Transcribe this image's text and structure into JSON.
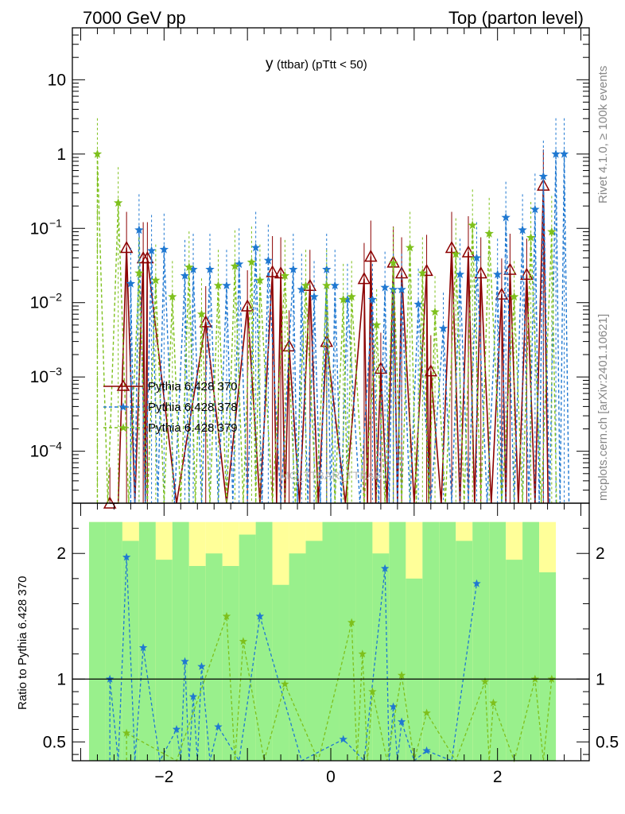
{
  "header": {
    "left": "7000 GeV pp",
    "right": "Top (parton level)"
  },
  "side_labels": {
    "rivet": "Rivet 4.1.0, ≥ 100k events",
    "mcplots": "mcplots.cern.ch [arXiv:2401.10621]"
  },
  "watermark": "MC_TTBAR_TTBAR",
  "chart_data": [
    {
      "type": "line",
      "title": "y (ttbar) (pTtt < 50)",
      "title_main": "y",
      "title_sub": "(ttbar)  (pTtt < 50)",
      "xlabel": "",
      "ylabel": "",
      "xlim": [
        -3.1,
        3.1
      ],
      "ylim": [
        2e-05,
        50
      ],
      "yscale": "log",
      "y_ticks": [
        {
          "value": 10,
          "label": "10",
          "sup": ""
        },
        {
          "value": 1,
          "label": "1",
          "sup": ""
        },
        {
          "value": 0.1,
          "label": "10",
          "sup": "−1"
        },
        {
          "value": 0.01,
          "label": "10",
          "sup": "−2"
        },
        {
          "value": 0.001,
          "label": "10",
          "sup": "−3"
        },
        {
          "value": 0.0001,
          "label": "10",
          "sup": "−4"
        }
      ],
      "legend": [
        "Pythia 6.428 370",
        "Pythia 6.428 378",
        "Pythia 6.428 379"
      ],
      "series": [
        {
          "name": "Pythia 6.428 370",
          "color": "#8b0000",
          "marker": "triangle",
          "line": "solid",
          "x": [
            -2.65,
            -2.45,
            -2.25,
            -2.2,
            -1.5,
            -1.0,
            -0.7,
            -0.6,
            -0.5,
            -0.25,
            -0.05,
            0.4,
            0.48,
            0.6,
            0.75,
            0.85,
            1.15,
            1.2,
            1.45,
            1.65,
            1.8,
            2.05,
            2.15,
            2.35,
            2.55
          ],
          "y": [
            2e-05,
            0.055,
            0.04,
            0.04,
            0.0055,
            0.009,
            0.026,
            0.025,
            0.0026,
            0.017,
            0.003,
            0.021,
            0.042,
            0.0013,
            0.035,
            0.025,
            0.027,
            0.0012,
            0.055,
            0.048,
            0.025,
            0.013,
            0.028,
            0.024,
            0.38
          ]
        },
        {
          "name": "Pythia 6.428 378",
          "color": "#1f78d1",
          "marker": "star",
          "line": "dashed",
          "x": [
            -2.4,
            -2.3,
            -2.15,
            -2.0,
            -1.75,
            -1.65,
            -1.45,
            -1.25,
            -1.1,
            -0.9,
            -0.75,
            -0.45,
            -0.35,
            -0.2,
            -0.05,
            0.05,
            0.2,
            0.5,
            0.65,
            0.75,
            0.85,
            1.05,
            1.35,
            1.55,
            1.75,
            2.0,
            2.1,
            2.3,
            2.45,
            2.55,
            2.7,
            2.8
          ],
          "y": [
            0.018,
            0.095,
            0.05,
            0.052,
            0.023,
            0.028,
            0.028,
            0.017,
            0.033,
            0.055,
            0.037,
            0.028,
            0.015,
            0.012,
            0.028,
            0.017,
            0.011,
            0.011,
            0.016,
            0.015,
            0.015,
            0.0095,
            0.0045,
            0.024,
            0.04,
            0.024,
            0.14,
            0.095,
            0.18,
            0.5,
            1.0,
            1.0
          ]
        },
        {
          "name": "Pythia 6.428 379",
          "color": "#7ec01c",
          "marker": "star",
          "line": "dashed",
          "x": [
            -2.8,
            -2.55,
            -2.3,
            -2.1,
            -1.9,
            -1.7,
            -1.55,
            -1.35,
            -1.15,
            -0.95,
            -0.85,
            -0.55,
            -0.3,
            -0.05,
            0.15,
            0.25,
            0.55,
            0.75,
            0.95,
            1.1,
            1.25,
            1.5,
            1.7,
            1.9,
            2.2,
            2.4,
            2.65
          ],
          "y": [
            1.0,
            0.22,
            0.025,
            0.02,
            0.012,
            0.03,
            0.007,
            0.017,
            0.031,
            0.035,
            0.02,
            0.023,
            0.017,
            0.017,
            0.011,
            0.012,
            0.005,
            0.034,
            0.055,
            0.025,
            0.0075,
            0.045,
            0.11,
            0.085,
            0.012,
            0.075,
            0.09
          ]
        }
      ]
    },
    {
      "type": "line",
      "title": "",
      "xlabel": "",
      "ylabel": "Ratio to Pythia 6.428 370",
      "xlim": [
        -3.1,
        3.1
      ],
      "ylim": [
        0.35,
        2.4
      ],
      "reference_line": 1,
      "x_ticks": [
        -2,
        0,
        2
      ],
      "x_tick_labels": [
        "−2",
        "0",
        "2"
      ],
      "y_ticks": [
        0.5,
        1,
        2
      ],
      "y_tick_labels": [
        "0.5",
        "1",
        "2"
      ],
      "bands": {
        "bin_edges": [
          -2.9,
          -2.7,
          -2.5,
          -2.3,
          -2.1,
          -1.9,
          -1.7,
          -1.5,
          -1.3,
          -1.1,
          -0.9,
          -0.7,
          -0.5,
          -0.3,
          -0.1,
          0.1,
          0.3,
          0.5,
          0.7,
          0.9,
          1.1,
          1.3,
          1.5,
          1.7,
          1.9,
          2.1,
          2.3,
          2.5,
          2.7
        ],
        "green_top": [
          2.25,
          2.25,
          2.1,
          2.25,
          1.95,
          2.25,
          1.9,
          2.0,
          1.9,
          2.15,
          2.25,
          1.75,
          2.0,
          2.1,
          2.25,
          2.25,
          2.25,
          2.0,
          2.25,
          1.8,
          2.25,
          2.25,
          2.1,
          2.25,
          2.25,
          1.95,
          2.25,
          1.85
        ],
        "yellow_top": [
          2.25,
          2.25,
          2.25,
          2.25,
          2.25,
          2.25,
          2.25,
          2.25,
          2.25,
          2.25,
          2.25,
          2.25,
          2.25,
          2.25,
          2.25,
          2.25,
          2.25,
          2.25,
          2.25,
          2.25,
          2.25,
          2.25,
          2.25,
          2.25,
          2.25,
          2.25,
          2.25,
          2.25
        ]
      },
      "series": [
        {
          "name": "Pythia 6.428 378 / 370",
          "color": "#1f78d1",
          "marker": "star",
          "x": [
            -2.65,
            -2.45,
            -2.25,
            -1.85,
            -1.75,
            -1.65,
            -1.55,
            -1.35,
            -0.85,
            0.15,
            0.65,
            0.75,
            0.85,
            1.15,
            1.75
          ],
          "y": [
            1.0,
            1.97,
            1.25,
            0.6,
            1.14,
            0.86,
            1.1,
            0.62,
            1.5,
            0.52,
            1.88,
            0.78,
            0.66,
            0.43,
            1.76
          ]
        },
        {
          "name": "Pythia 6.428 379 / 370",
          "color": "#7ec01c",
          "marker": "star",
          "x": [
            -2.45,
            -1.25,
            -1.05,
            -0.55,
            0.25,
            0.38,
            0.5,
            0.85,
            1.15,
            1.85,
            1.95,
            2.45,
            2.65
          ],
          "y": [
            0.57,
            1.5,
            1.3,
            0.96,
            1.45,
            1.2,
            0.9,
            1.03,
            0.73,
            0.98,
            0.81,
            1.0,
            1.0
          ]
        }
      ]
    }
  ]
}
